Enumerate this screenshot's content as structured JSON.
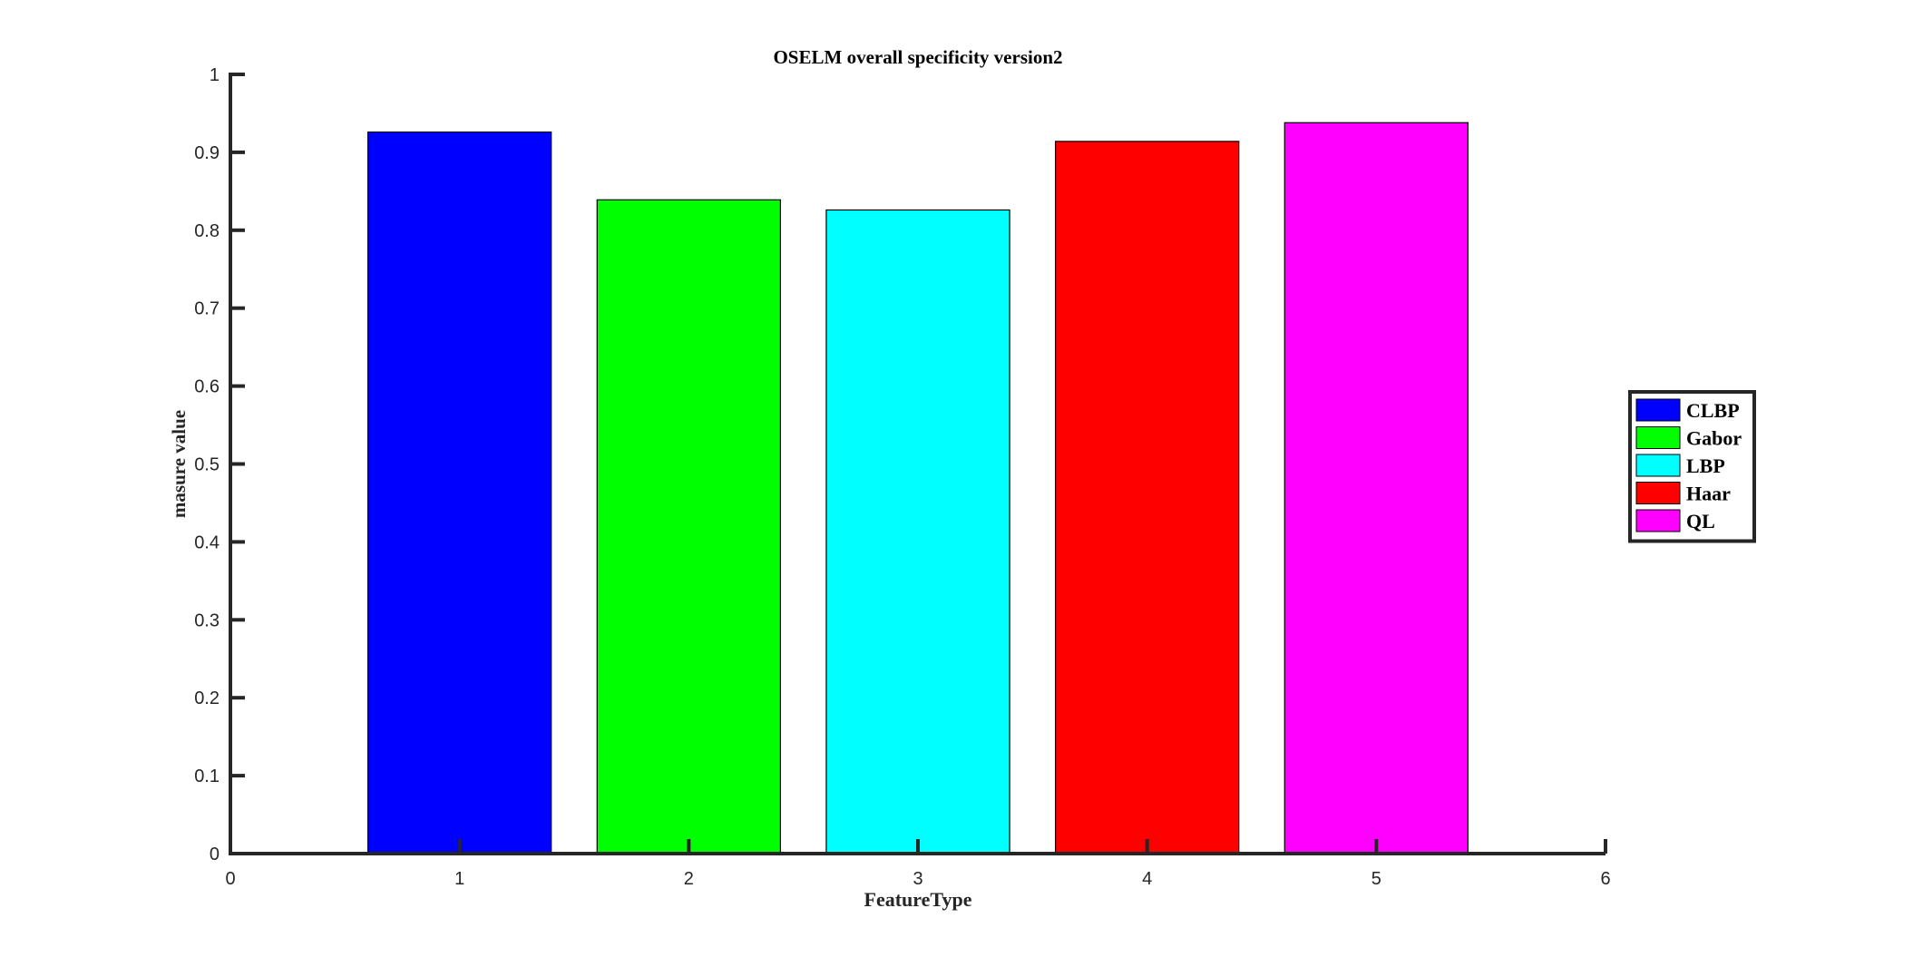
{
  "chart_data": {
    "type": "bar",
    "title": "OSELM overall specificity version2",
    "xlabel": "FeatureType",
    "ylabel": "masure value",
    "xlim": [
      0,
      6
    ],
    "ylim": [
      0,
      1
    ],
    "x_ticks": [
      0,
      1,
      2,
      3,
      4,
      5,
      6
    ],
    "y_ticks": [
      0,
      0.1,
      0.2,
      0.3,
      0.4,
      0.5,
      0.6,
      0.7,
      0.8,
      0.9,
      1
    ],
    "grid": false,
    "legend_position": "east-outside",
    "series": [
      {
        "name": "CLBP",
        "x": 1,
        "value": 0.926,
        "color": "#0000ff"
      },
      {
        "name": "Gabor",
        "x": 2,
        "value": 0.839,
        "color": "#00ff00"
      },
      {
        "name": "LBP",
        "x": 3,
        "value": 0.826,
        "color": "#00ffff"
      },
      {
        "name": "Haar",
        "x": 4,
        "value": 0.914,
        "color": "#ff0000"
      },
      {
        "name": "QL",
        "x": 5,
        "value": 0.938,
        "color": "#ff00ff"
      }
    ],
    "bar_width_units": 0.8
  }
}
